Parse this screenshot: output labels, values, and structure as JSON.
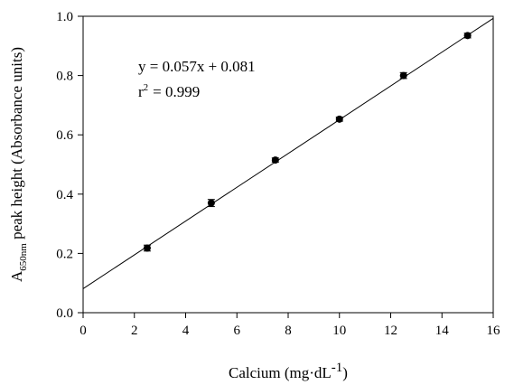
{
  "chart_data": {
    "type": "scatter",
    "title": "",
    "xlabel": "Calcium (mg·dL",
    "xlabel_sup": "-1",
    "xlabel_end": ")",
    "ylabel_prefix": "A",
    "ylabel_sub": "650nm",
    "ylabel_rest": " peak height (Absorbance units)",
    "xlim": [
      0,
      16
    ],
    "ylim": [
      0.0,
      1.0
    ],
    "xticks": [
      0,
      2,
      4,
      6,
      8,
      10,
      12,
      14,
      16
    ],
    "xtick_labels": [
      "0",
      "2",
      "4",
      "6",
      "8",
      "10",
      "12",
      "14",
      "16"
    ],
    "yticks": [
      0.0,
      0.2,
      0.4,
      0.6,
      0.8,
      1.0
    ],
    "ytick_labels": [
      "0.0",
      "0.2",
      "0.4",
      "0.6",
      "0.8",
      "1.0"
    ],
    "grid": false,
    "points": [
      {
        "x": 2.5,
        "y": 0.218,
        "err": 0.01
      },
      {
        "x": 5.0,
        "y": 0.37,
        "err": 0.012
      },
      {
        "x": 7.5,
        "y": 0.515,
        "err": 0.007
      },
      {
        "x": 10.0,
        "y": 0.653,
        "err": 0.007
      },
      {
        "x": 12.5,
        "y": 0.8,
        "err": 0.01
      },
      {
        "x": 15.0,
        "y": 0.935,
        "err": 0.008
      }
    ],
    "fit": {
      "slope": 0.057,
      "intercept": 0.081
    },
    "equation": "y = 0.057x + 0.081",
    "r2_label": "r",
    "r2_sup": "2",
    "r2_value": "= 0.999"
  }
}
